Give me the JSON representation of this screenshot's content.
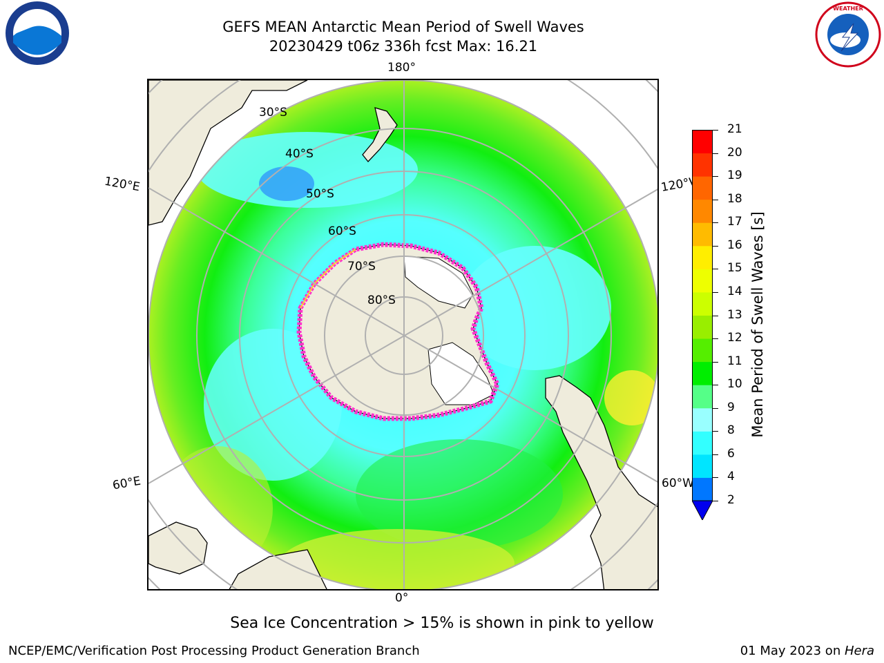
{
  "title_line1": "GEFS MEAN Antarctic Mean Period of Swell Waves",
  "title_line2": "20230429 t06z 336h fcst   Max: 16.21",
  "logos": {
    "left": "NOAA",
    "right": "NATIONAL WEATHER SERVICE"
  },
  "map": {
    "longitude_labels": {
      "top": "180°",
      "bottom": "0°",
      "upper_left": "120°E",
      "upper_right": "120°W",
      "lower_left": "60°E",
      "lower_right": "60°W"
    },
    "latitude_labels": [
      "30°S",
      "40°S",
      "50°S",
      "60°S",
      "70°S",
      "80°S"
    ],
    "colors": {
      "land": "#efecdc",
      "ice": "#ffffff",
      "grid": "#b0b0b0",
      "ice_edge": "#ff33cc"
    }
  },
  "colorbar": {
    "title": "Mean Period of Swell Waves [s]",
    "ticks": [
      "21",
      "20",
      "19",
      "18",
      "17",
      "16",
      "15",
      "14",
      "13",
      "12",
      "11",
      "10",
      "9",
      "8",
      "6",
      "4",
      "2"
    ],
    "colors": [
      "#0000ee",
      "#0077ff",
      "#00e5ff",
      "#33ffff",
      "#99ffff",
      "#55ff88",
      "#00ee00",
      "#55ee00",
      "#99ee00",
      "#ccff00",
      "#eeff00",
      "#ffee00",
      "#ffbb00",
      "#ff8800",
      "#ff6600",
      "#ff3300",
      "#ff0000"
    ]
  },
  "note": "Sea Ice Concentration > 15% is shown in pink to yellow",
  "footer_left": "NCEP/EMC/Verification Post Processing Product Generation Branch",
  "footer_date": "01 May 2023 on ",
  "footer_machine": "Hera"
}
